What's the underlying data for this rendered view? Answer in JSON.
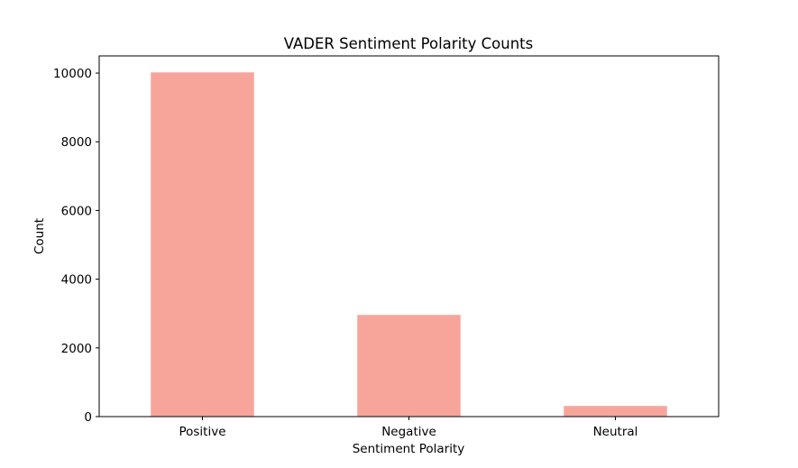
{
  "chart_data": {
    "type": "bar",
    "title": "VADER Sentiment Polarity Counts",
    "xlabel": "Sentiment Polarity",
    "ylabel": "Count",
    "categories": [
      "Positive",
      "Negative",
      "Neutral"
    ],
    "values": [
      10020,
      2960,
      310
    ],
    "ylim": [
      0,
      10500
    ],
    "yticks": [
      0,
      2000,
      4000,
      6000,
      8000,
      10000
    ],
    "bar_color": "#f7a59b",
    "grid": false,
    "legend": "none"
  }
}
